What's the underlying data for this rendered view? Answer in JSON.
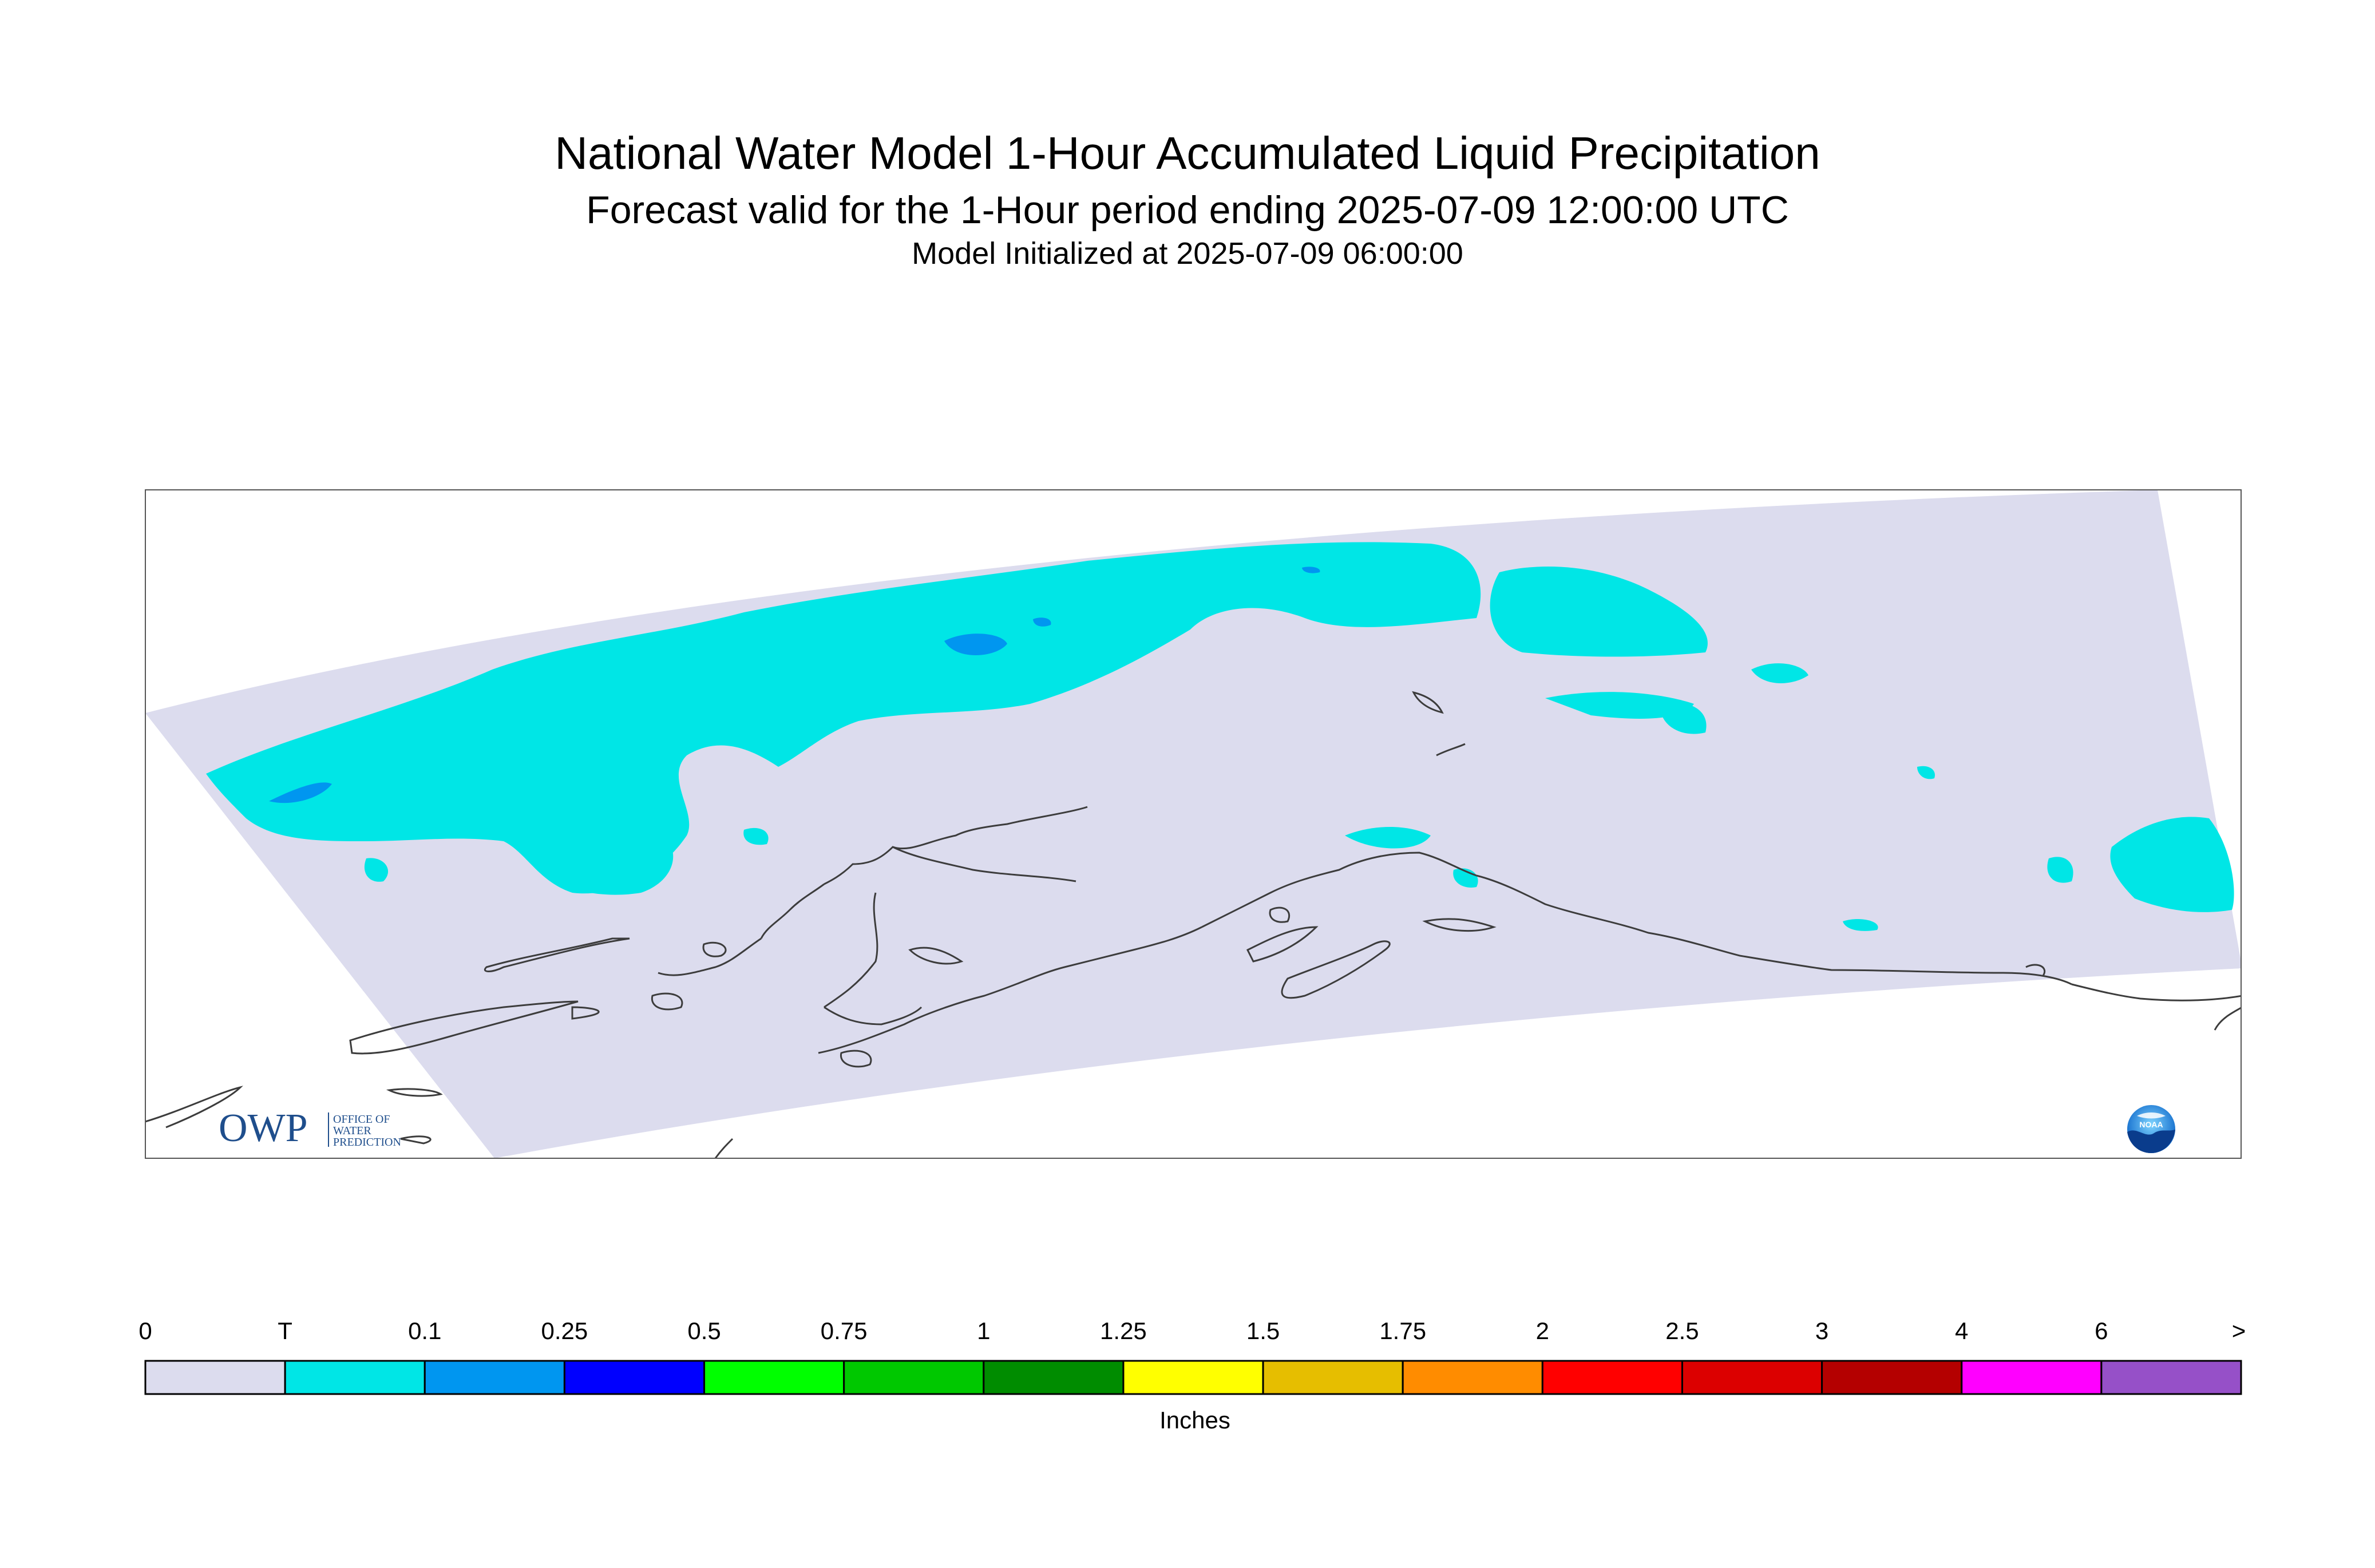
{
  "header": {
    "title": "National Water Model 1-Hour Accumulated Liquid Precipitation",
    "subtitle": "Forecast valid for the 1-Hour period ending 2025-07-09 12:00:00 UTC",
    "initialized": "Model Initialized at 2025-07-09 06:00:00"
  },
  "legend": {
    "units": "Inches",
    "ticks": [
      "0",
      "T",
      "0.1",
      "0.25",
      "0.5",
      "0.75",
      "1",
      "1.25",
      "1.5",
      "1.75",
      "2",
      "2.5",
      "3",
      "4",
      "6",
      ">"
    ],
    "colors": [
      "#dcdcee",
      "#00e6e6",
      "#0096f0",
      "#0000ff",
      "#00ff00",
      "#00c800",
      "#008c00",
      "#ffff00",
      "#e6be00",
      "#ff8c00",
      "#ff0000",
      "#dc0000",
      "#b40000",
      "#ff00ff",
      "#9650c8"
    ]
  },
  "map": {
    "domain_fill": "#dcdcee",
    "precip_fill": "#00e6e6",
    "heavier_fill": "#0096f0",
    "coast_color": "#3c3c3c",
    "region": "Alaska"
  },
  "logos": {
    "owp": {
      "mark": "OWP",
      "text_lines": [
        "OFFICE OF",
        "WATER",
        "PREDICTION"
      ]
    },
    "noaa": {
      "text": "NOAA"
    }
  }
}
